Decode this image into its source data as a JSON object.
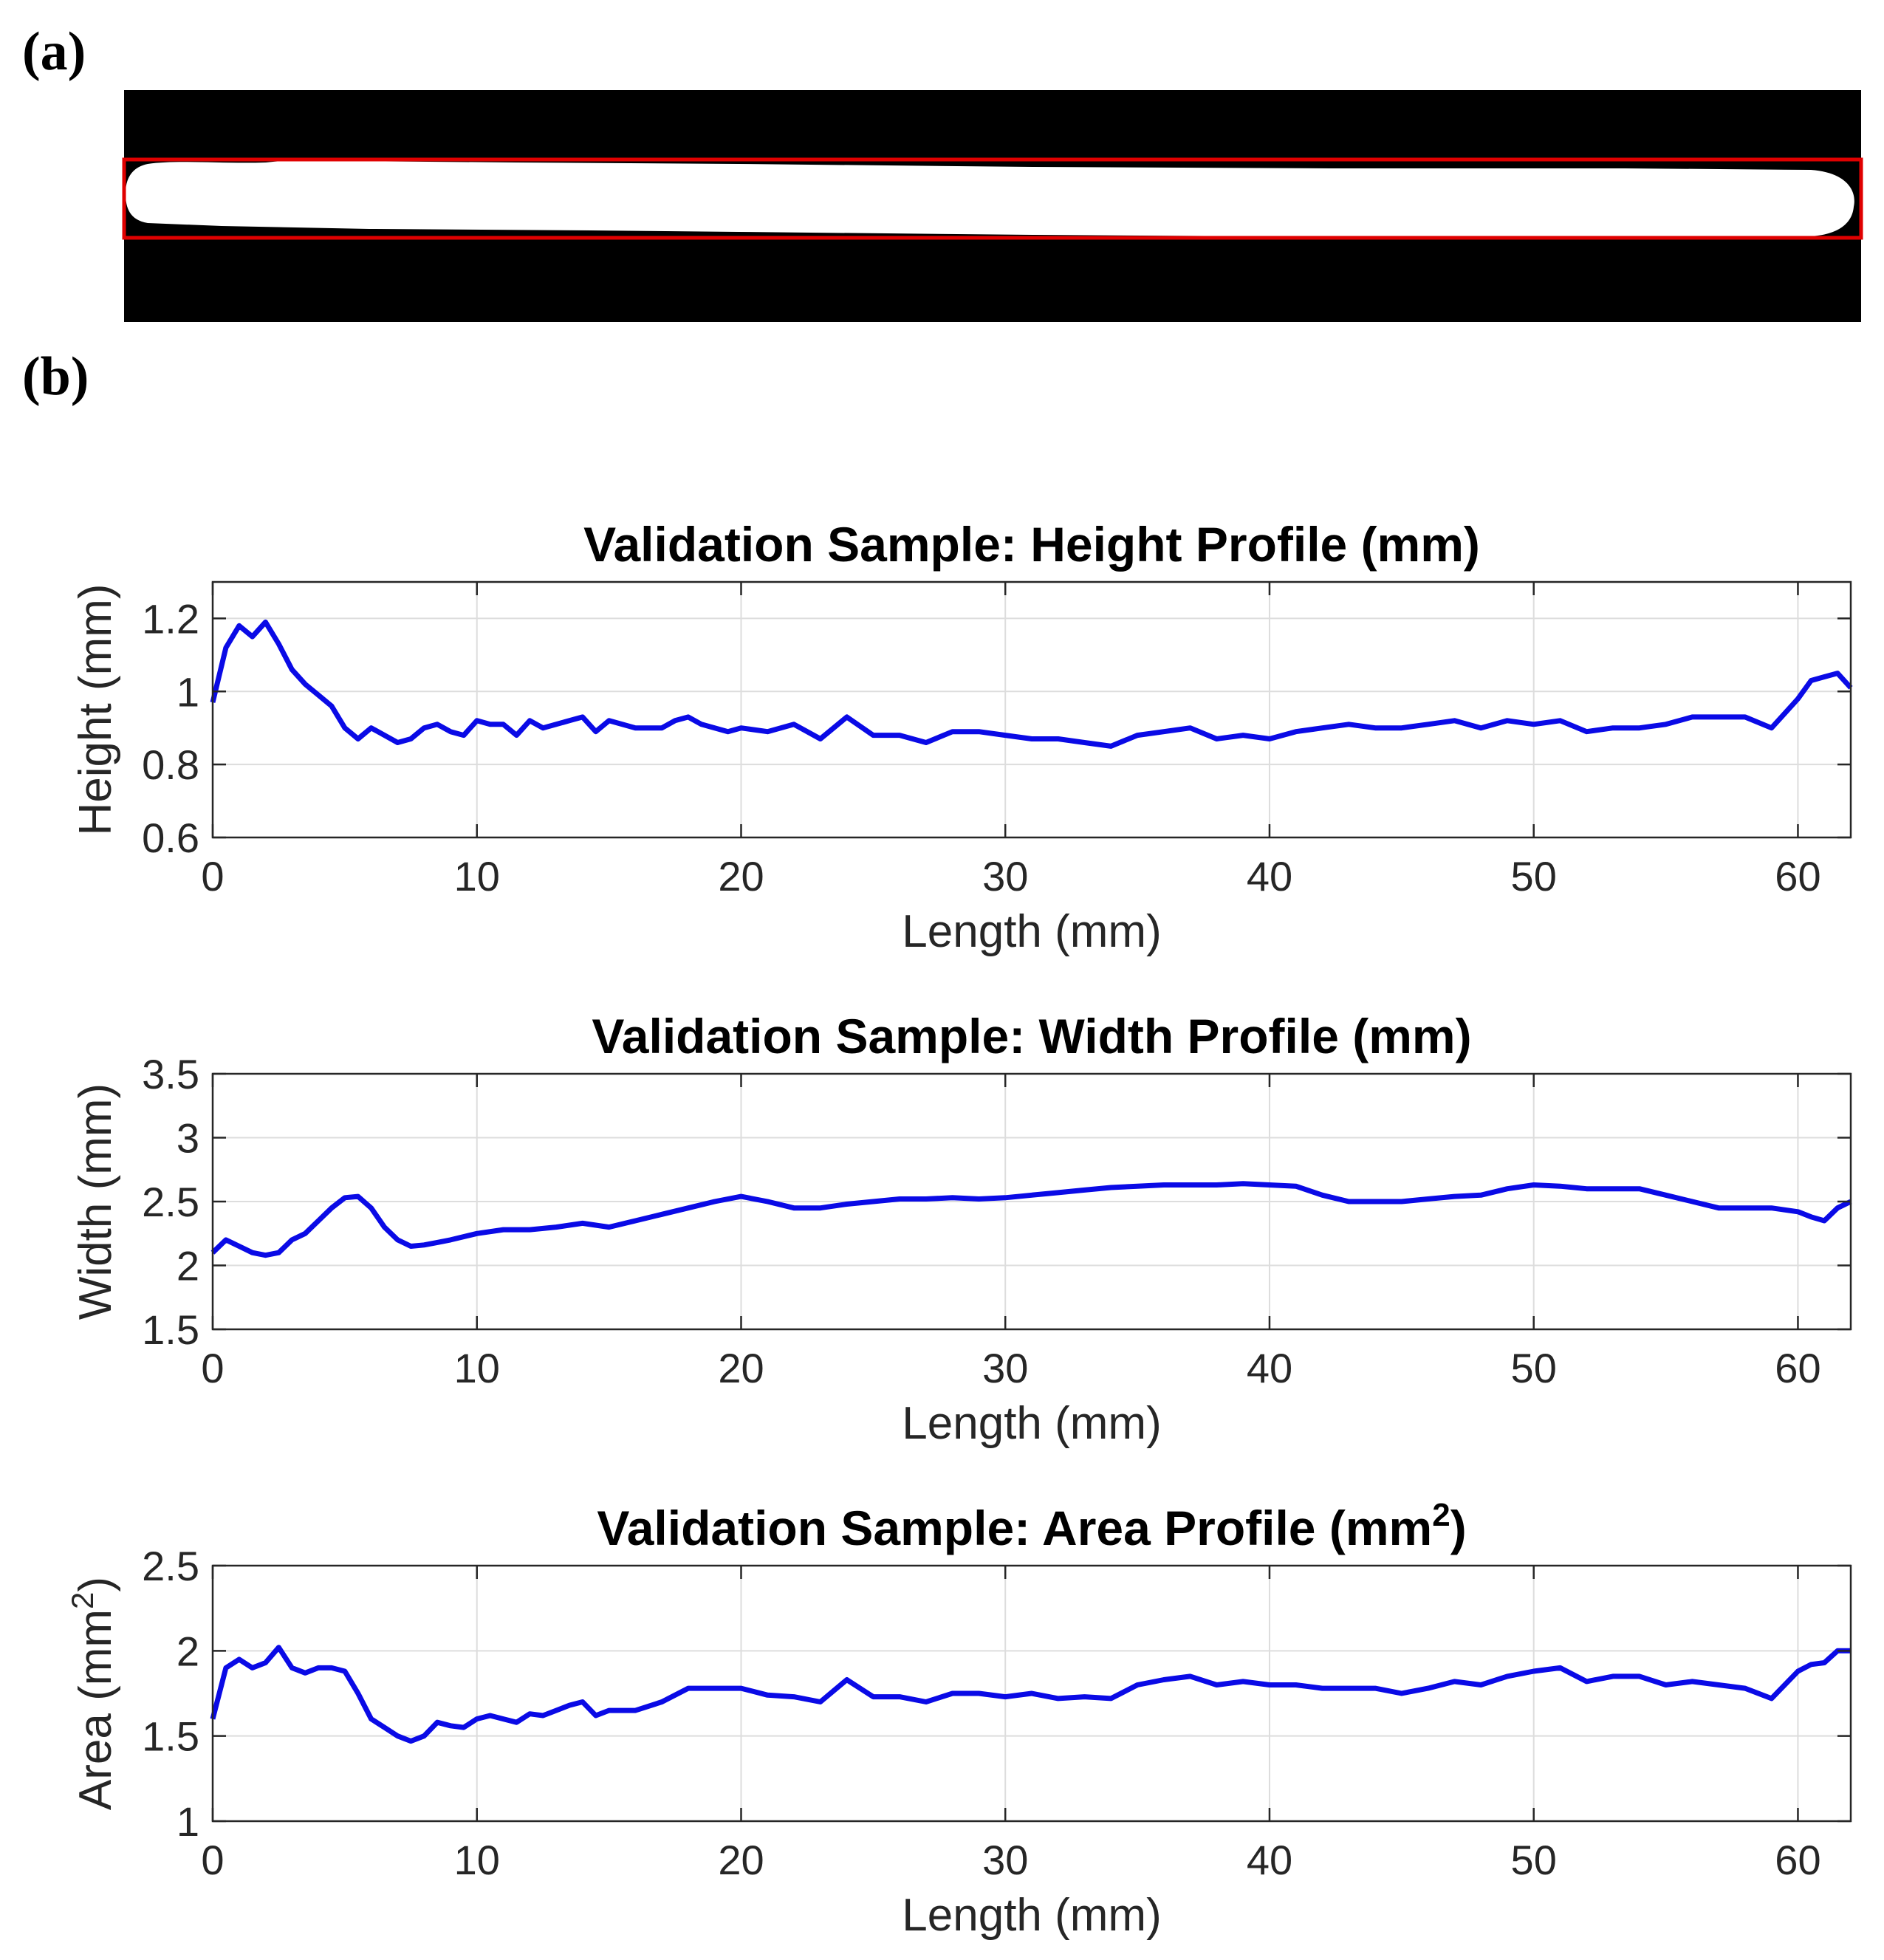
{
  "panels": {
    "a": "(a)",
    "b": "(b)"
  },
  "colors": {
    "line": "#0a0ae6",
    "box": "#e00000",
    "grid": "#dddddd",
    "axis": "#262626",
    "mask_bg": "#000000",
    "mask_fg": "#ffffff"
  },
  "image_a": {
    "type": "binary-mask",
    "description_shown": "white filament on black background with red bounding box"
  },
  "chart_data": [
    {
      "type": "line",
      "title": "Validation Sample: Height Profile (mm)",
      "title_sup": "",
      "xlabel": "Length (mm)",
      "ylabel": "Height (mm)",
      "ylabel_sup": "",
      "xlim": [
        0,
        62
      ],
      "ylim": [
        0.6,
        1.3
      ],
      "xticks": [
        0,
        10,
        20,
        30,
        40,
        50,
        60
      ],
      "yticks": [
        0.6,
        0.8,
        1,
        1.2
      ],
      "xticklabels": [
        "0",
        "10",
        "20",
        "30",
        "40",
        "50",
        "60"
      ],
      "yticklabels": [
        "0.6",
        "0.8",
        "1",
        "1.2"
      ],
      "grid": true,
      "series": [
        {
          "x": [
            0,
            0.5,
            1,
            1.5,
            2,
            2.5,
            3,
            3.5,
            4,
            4.5,
            5,
            5.5,
            6,
            6.5,
            7,
            7.5,
            8,
            8.5,
            9,
            9.5,
            10,
            10.5,
            11,
            11.5,
            12,
            12.5,
            13,
            13.5,
            14,
            14.5,
            15,
            15.5,
            16,
            16.5,
            17,
            17.5,
            18,
            18.5,
            19,
            19.5,
            20,
            21,
            22,
            23,
            24,
            25,
            26,
            27,
            28,
            29,
            30,
            31,
            32,
            33,
            34,
            35,
            36,
            37,
            38,
            39,
            40,
            41,
            42,
            43,
            44,
            45,
            46,
            47,
            48,
            49,
            50,
            51,
            52,
            53,
            54,
            55,
            56,
            57,
            58,
            59,
            60,
            60.5,
            61,
            61.5,
            62
          ],
          "y": [
            0.97,
            1.12,
            1.18,
            1.15,
            1.19,
            1.13,
            1.06,
            1.02,
            0.99,
            0.96,
            0.9,
            0.87,
            0.9,
            0.88,
            0.86,
            0.87,
            0.9,
            0.91,
            0.89,
            0.88,
            0.92,
            0.91,
            0.91,
            0.88,
            0.92,
            0.9,
            0.91,
            0.92,
            0.93,
            0.89,
            0.92,
            0.91,
            0.9,
            0.9,
            0.9,
            0.92,
            0.93,
            0.91,
            0.9,
            0.89,
            0.9,
            0.89,
            0.91,
            0.87,
            0.93,
            0.88,
            0.88,
            0.86,
            0.89,
            0.89,
            0.88,
            0.87,
            0.87,
            0.86,
            0.85,
            0.88,
            0.89,
            0.9,
            0.87,
            0.88,
            0.87,
            0.89,
            0.9,
            0.91,
            0.9,
            0.9,
            0.91,
            0.92,
            0.9,
            0.92,
            0.91,
            0.92,
            0.89,
            0.9,
            0.9,
            0.91,
            0.93,
            0.93,
            0.93,
            0.9,
            0.98,
            1.03,
            1.04,
            1.05,
            1.01
          ]
        }
      ]
    },
    {
      "type": "line",
      "title": "Validation Sample: Width Profile (mm)",
      "title_sup": "",
      "xlabel": "Length (mm)",
      "ylabel": "Width (mm)",
      "ylabel_sup": "",
      "xlim": [
        0,
        62
      ],
      "ylim": [
        1.5,
        3.5
      ],
      "xticks": [
        0,
        10,
        20,
        30,
        40,
        50,
        60
      ],
      "yticks": [
        1.5,
        2,
        2.5,
        3,
        3.5
      ],
      "xticklabels": [
        "0",
        "10",
        "20",
        "30",
        "40",
        "50",
        "60"
      ],
      "yticklabels": [
        "1.5",
        "2",
        "2.5",
        "3",
        "3.5"
      ],
      "grid": true,
      "series": [
        {
          "x": [
            0,
            0.5,
            1,
            1.5,
            2,
            2.5,
            3,
            3.5,
            4,
            4.5,
            5,
            5.5,
            6,
            6.5,
            7,
            7.5,
            8,
            8.5,
            9,
            10,
            11,
            12,
            13,
            14,
            15,
            16,
            17,
            18,
            19,
            20,
            21,
            22,
            23,
            24,
            25,
            26,
            27,
            28,
            29,
            30,
            31,
            32,
            33,
            34,
            35,
            36,
            37,
            38,
            39,
            40,
            41,
            42,
            43,
            44,
            45,
            46,
            47,
            48,
            49,
            50,
            51,
            52,
            53,
            54,
            55,
            56,
            57,
            58,
            59,
            60,
            60.5,
            61,
            61.5,
            62
          ],
          "y": [
            2.1,
            2.2,
            2.15,
            2.1,
            2.08,
            2.1,
            2.2,
            2.25,
            2.35,
            2.45,
            2.53,
            2.54,
            2.45,
            2.3,
            2.2,
            2.15,
            2.16,
            2.18,
            2.2,
            2.25,
            2.28,
            2.28,
            2.3,
            2.33,
            2.3,
            2.35,
            2.4,
            2.45,
            2.5,
            2.54,
            2.5,
            2.45,
            2.45,
            2.48,
            2.5,
            2.52,
            2.52,
            2.53,
            2.52,
            2.53,
            2.55,
            2.57,
            2.59,
            2.61,
            2.62,
            2.63,
            2.63,
            2.63,
            2.64,
            2.63,
            2.62,
            2.55,
            2.5,
            2.5,
            2.5,
            2.52,
            2.54,
            2.55,
            2.6,
            2.63,
            2.62,
            2.6,
            2.6,
            2.6,
            2.55,
            2.5,
            2.45,
            2.45,
            2.45,
            2.42,
            2.38,
            2.35,
            2.45,
            2.5
          ]
        }
      ]
    },
    {
      "type": "line",
      "title": "Validation Sample: Area Profile (mm",
      "title_sup": "2",
      "title_end": ")",
      "xlabel": "Length (mm)",
      "ylabel": "Area (mm",
      "ylabel_sup": "2",
      "ylabel_end": ")",
      "xlim": [
        0,
        62
      ],
      "ylim": [
        1,
        2.5
      ],
      "xticks": [
        0,
        10,
        20,
        30,
        40,
        50,
        60
      ],
      "yticks": [
        1,
        1.5,
        2,
        2.5
      ],
      "xticklabels": [
        "0",
        "10",
        "20",
        "30",
        "40",
        "50",
        "60"
      ],
      "yticklabels": [
        "1",
        "1.5",
        "2",
        "2.5"
      ],
      "grid": true,
      "series": [
        {
          "x": [
            0,
            0.5,
            1,
            1.5,
            2,
            2.5,
            3,
            3.5,
            4,
            4.5,
            5,
            5.5,
            6,
            6.5,
            7,
            7.5,
            8,
            8.5,
            9,
            9.5,
            10,
            10.5,
            11,
            11.5,
            12,
            12.5,
            13,
            13.5,
            14,
            14.5,
            15,
            16,
            17,
            18,
            19,
            20,
            21,
            22,
            23,
            24,
            25,
            26,
            27,
            28,
            29,
            30,
            31,
            32,
            33,
            34,
            35,
            36,
            37,
            38,
            39,
            40,
            41,
            42,
            43,
            44,
            45,
            46,
            47,
            48,
            49,
            50,
            51,
            52,
            53,
            54,
            55,
            56,
            57,
            58,
            59,
            60,
            60.5,
            61,
            61.5,
            62
          ],
          "y": [
            1.6,
            1.9,
            1.95,
            1.9,
            1.93,
            2.02,
            1.9,
            1.87,
            1.9,
            1.9,
            1.88,
            1.75,
            1.6,
            1.55,
            1.5,
            1.47,
            1.5,
            1.58,
            1.56,
            1.55,
            1.6,
            1.62,
            1.6,
            1.58,
            1.63,
            1.62,
            1.65,
            1.68,
            1.7,
            1.62,
            1.65,
            1.65,
            1.7,
            1.78,
            1.78,
            1.78,
            1.74,
            1.73,
            1.7,
            1.83,
            1.73,
            1.73,
            1.7,
            1.75,
            1.75,
            1.73,
            1.75,
            1.72,
            1.73,
            1.72,
            1.8,
            1.83,
            1.85,
            1.8,
            1.82,
            1.8,
            1.8,
            1.78,
            1.78,
            1.78,
            1.75,
            1.78,
            1.82,
            1.8,
            1.85,
            1.88,
            1.9,
            1.82,
            1.85,
            1.85,
            1.8,
            1.82,
            1.8,
            1.78,
            1.72,
            1.88,
            1.92,
            1.93,
            2.0,
            2.0
          ]
        }
      ]
    }
  ]
}
